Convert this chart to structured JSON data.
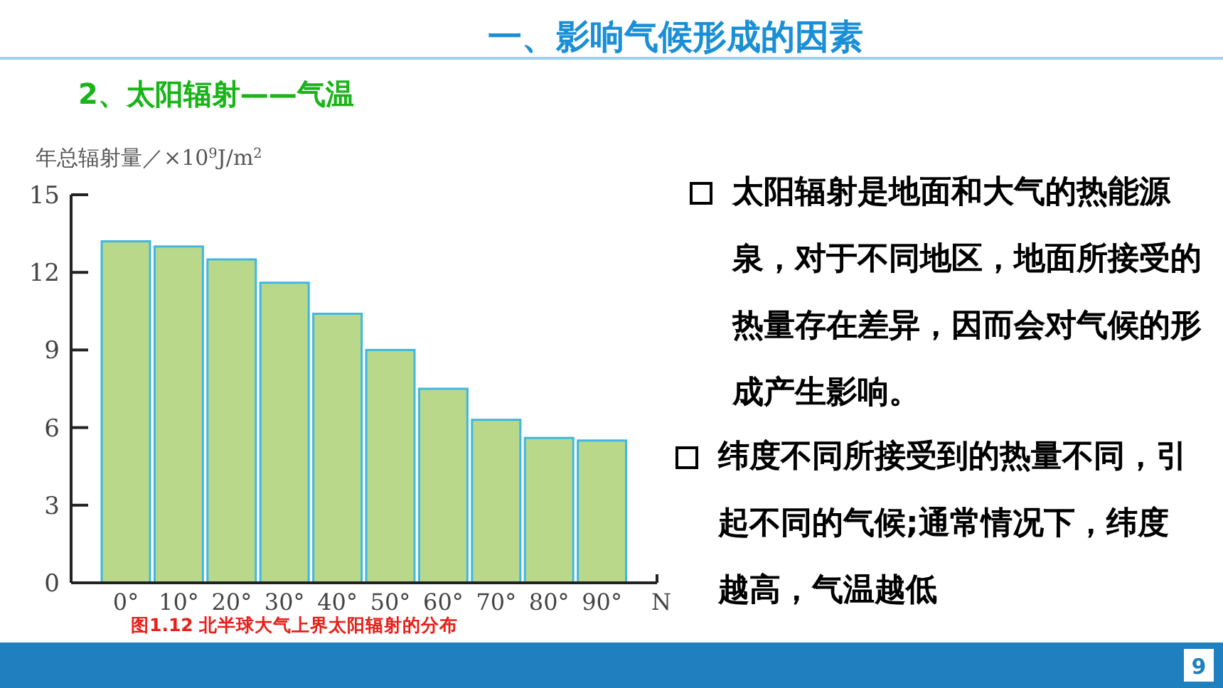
{
  "chart_data": {
    "type": "bar",
    "title": "一、影响气候形成的因素",
    "subtitle": "2、太阳辐射——气温",
    "ylabel": "年总辐射量／×10$^{9}$J/m$^{2}$",
    "xlabel": "N",
    "categories": [
      "0°",
      "10°",
      "20°",
      "30°",
      "40°",
      "50°",
      "60°",
      "70°",
      "80°",
      "90°"
    ],
    "values": [
      13.2,
      13.0,
      12.5,
      11.6,
      10.4,
      9.0,
      7.5,
      6.3,
      5.6,
      5.5
    ],
    "color": "#bad88a",
    "ylim": [
      0,
      15
    ],
    "yticks": [
      0,
      3,
      6,
      9,
      12,
      15
    ],
    "annotations": [
      "图1.12 北半球大气上界太阳辐射的分布",
      "太阳辐射是地面和大气的热能源泉，对于不同地区，地面所接受的热量存在差异，因而会对气候的形成产生影响。",
      "纬度不同所接受到的热量不同，引起不同的气候;通常情况下，纬度越高，气温越低",
      "9"
    ]
  }
}
